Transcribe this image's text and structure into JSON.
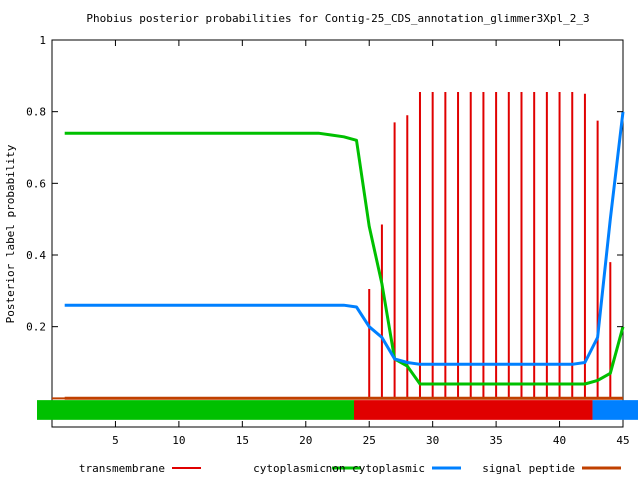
{
  "chart_data": {
    "type": "line",
    "title": "Phobius posterior probabilities for Contig-25_CDS_annotation_glimmer3Xpl_2_3",
    "xlabel": "",
    "ylabel": "Posterior label probability",
    "xlim": [
      0,
      45
    ],
    "ylim": [
      -0.08,
      1.0
    ],
    "x_ticks": [
      5,
      10,
      15,
      20,
      25,
      30,
      35,
      40,
      45
    ],
    "y_ticks": [
      0.2,
      0.4,
      0.6,
      0.8,
      1
    ],
    "y_tick_labels": [
      "0.2",
      "0.4",
      "0.6",
      "0.8",
      "1"
    ],
    "x": [
      1,
      2,
      3,
      4,
      5,
      6,
      7,
      8,
      9,
      10,
      11,
      12,
      13,
      14,
      15,
      16,
      17,
      18,
      19,
      20,
      21,
      22,
      23,
      24,
      25,
      26,
      27,
      28,
      29,
      30,
      31,
      32,
      33,
      34,
      35,
      36,
      37,
      38,
      39,
      40,
      41,
      42,
      43,
      44,
      45
    ],
    "series": [
      {
        "name": "transmembrane",
        "style": "impulses",
        "color": "#e00000",
        "values": [
          0,
          0,
          0,
          0,
          0,
          0,
          0,
          0,
          0,
          0,
          0,
          0,
          0,
          0,
          0,
          0,
          0,
          0,
          0,
          0,
          0,
          0,
          0,
          0,
          0.305,
          0.485,
          0.77,
          0.79,
          0.855,
          0.855,
          0.855,
          0.855,
          0.855,
          0.855,
          0.855,
          0.855,
          0.855,
          0.855,
          0.855,
          0.855,
          0.855,
          0.85,
          0.775,
          0.38,
          0
        ]
      },
      {
        "name": "cytoplasmic",
        "style": "line",
        "color": "#00c000",
        "values": [
          0.74,
          0.74,
          0.74,
          0.74,
          0.74,
          0.74,
          0.74,
          0.74,
          0.74,
          0.74,
          0.74,
          0.74,
          0.74,
          0.74,
          0.74,
          0.74,
          0.74,
          0.74,
          0.74,
          0.74,
          0.74,
          0.735,
          0.73,
          0.72,
          0.48,
          0.32,
          0.11,
          0.09,
          0.04,
          0.04,
          0.04,
          0.04,
          0.04,
          0.04,
          0.04,
          0.04,
          0.04,
          0.04,
          0.04,
          0.04,
          0.04,
          0.04,
          0.05,
          0.07,
          0.2
        ]
      },
      {
        "name": "non cytoplasmic",
        "style": "line",
        "color": "#0080ff",
        "values": [
          0.26,
          0.26,
          0.26,
          0.26,
          0.26,
          0.26,
          0.26,
          0.26,
          0.26,
          0.26,
          0.26,
          0.26,
          0.26,
          0.26,
          0.26,
          0.26,
          0.26,
          0.26,
          0.26,
          0.26,
          0.26,
          0.26,
          0.26,
          0.255,
          0.2,
          0.17,
          0.11,
          0.1,
          0.095,
          0.095,
          0.095,
          0.095,
          0.095,
          0.095,
          0.095,
          0.095,
          0.095,
          0.095,
          0.095,
          0.095,
          0.095,
          0.1,
          0.17,
          0.5,
          0.8
        ]
      },
      {
        "name": "signal peptide",
        "style": "line",
        "color": "#c04000",
        "values": [
          0,
          0,
          0,
          0,
          0,
          0,
          0,
          0,
          0,
          0,
          0,
          0,
          0,
          0,
          0,
          0,
          0,
          0,
          0,
          0,
          0,
          0,
          0,
          0,
          0,
          0,
          0,
          0,
          0,
          0,
          0,
          0,
          0,
          0,
          0,
          0,
          0,
          0,
          0,
          0,
          0,
          0,
          0,
          0,
          0
        ]
      }
    ],
    "topology_bars": [
      {
        "label": "cytoplasmic",
        "from": 0,
        "to": 23.8,
        "color": "#00c000"
      },
      {
        "label": "transmembrane",
        "from": 23.8,
        "to": 42.6,
        "color": "#e00000"
      },
      {
        "label": "non cytoplasmic",
        "from": 42.6,
        "to": 45,
        "color": "#0080ff"
      }
    ],
    "legend_position": "bottom"
  }
}
